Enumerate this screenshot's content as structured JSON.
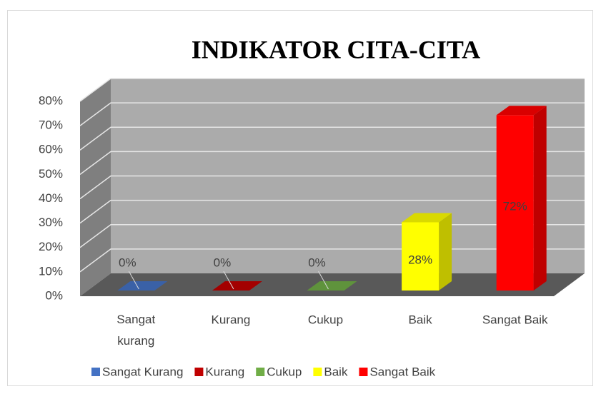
{
  "chart_data": {
    "type": "bar3d",
    "title": "INDIKATOR CITA-CITA",
    "categories": [
      "Sangat kurang",
      "Kurang",
      "Cukup",
      "Baik",
      "Sangat Baik"
    ],
    "values": [
      0,
      0,
      0,
      28,
      72
    ],
    "value_labels": [
      "0%",
      "0%",
      "0%",
      "28%",
      "72%"
    ],
    "colors": [
      "#4472c4",
      "#c00000",
      "#70ad47",
      "#ffff00",
      "#ff0000"
    ],
    "legend": [
      "Sangat Kurang",
      "Kurang",
      "Cukup",
      "Baik",
      "Sangat Baik"
    ],
    "ylim": [
      0,
      80
    ],
    "yticks": [
      {
        "value": 0,
        "label": "0%"
      },
      {
        "value": 10,
        "label": "10%"
      },
      {
        "value": 20,
        "label": "20%"
      },
      {
        "value": 30,
        "label": "30%"
      },
      {
        "value": 40,
        "label": "40%"
      },
      {
        "value": 50,
        "label": "50%"
      },
      {
        "value": 60,
        "label": "60%"
      },
      {
        "value": 70,
        "label": "70%"
      },
      {
        "value": 80,
        "label": "80%"
      }
    ],
    "grid": true
  }
}
